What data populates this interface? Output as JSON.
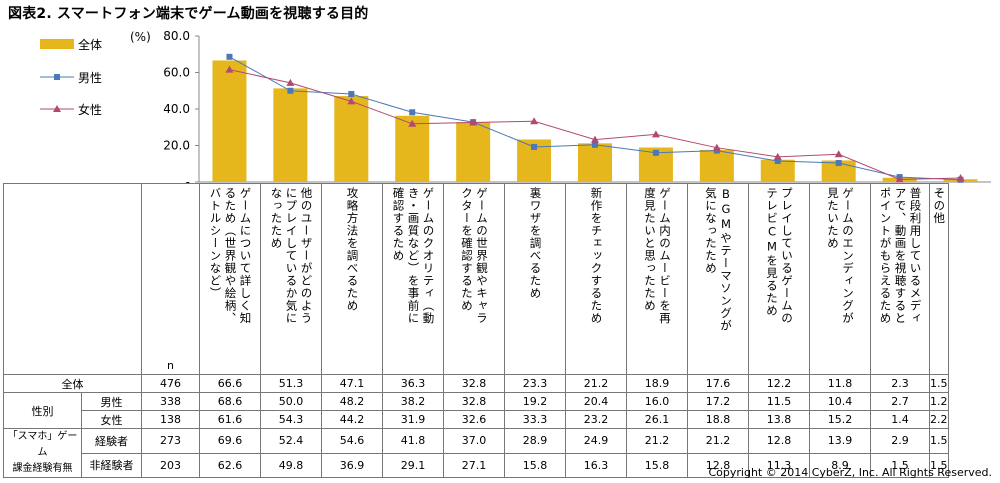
{
  "title": "図表2. スマートフォン端末でゲーム動画を視聴する目的",
  "unit_label": "(%)",
  "y_ticks": [
    "80.0",
    "60.0",
    "40.0",
    "20.0",
    "-"
  ],
  "legend": {
    "all": "全体",
    "male": "男性",
    "female": "女性"
  },
  "colors": {
    "bar": "#e5b71c",
    "male": "#4a78b8",
    "female": "#b24a6e"
  },
  "chart_data": {
    "type": "bar",
    "categories": [
      "ゲームについて詳しく知るため（世界観や絵柄、バトルシーンなど）",
      "他のユーザーがどのようにプレイしているか気になったため",
      "攻略方法を調べるため",
      "ゲームのクオリティ（動き・画質など）を事前に確認するため",
      "ゲームの世界観やキャラクターを確認するため",
      "裏ワザを調べるため",
      "新作をチェックするため",
      "ゲーム内のムービーを再度見たいと思ったため",
      "BGMやテーマソングが気になったため",
      "プレイしているゲームのテレビCMを見るため",
      "ゲームのエンディングが見たいため",
      "普段利用しているメディアで、動画を視聴するとポイントがもらえるため",
      "その他"
    ],
    "series": [
      {
        "name": "全体",
        "values": [
          66.6,
          51.3,
          47.1,
          36.3,
          32.8,
          23.3,
          21.2,
          18.9,
          17.6,
          12.2,
          11.8,
          2.3,
          1.5
        ]
      },
      {
        "name": "男性",
        "values": [
          68.6,
          50.0,
          48.2,
          38.2,
          32.8,
          19.2,
          20.4,
          16.0,
          17.2,
          11.5,
          10.4,
          2.7,
          1.2
        ]
      },
      {
        "name": "女性",
        "values": [
          61.6,
          54.3,
          44.2,
          31.9,
          32.6,
          33.3,
          23.2,
          26.1,
          18.8,
          13.8,
          15.2,
          1.4,
          2.2
        ]
      }
    ],
    "ylim": [
      0,
      80
    ],
    "ylabel": "(%)"
  },
  "table": {
    "header_n": "n",
    "category_labels": [
      "ゲームについて詳しく知\nるため（世界観や絵柄、\nバトルシーンなど）",
      "他のユーザーがどのよう\nにプレイしているか気に\nなったため",
      "攻略方法を調べるため",
      "ゲームのクオリティ（動\nき・画質など）を事前に\n確認するため",
      "ゲームの世界観やキャラ\nクターを確認するため",
      "裏ワザを調べるため",
      "新作をチェックするため",
      "ゲーム内のムービーを再\n度見たいと思ったため",
      "BGMやテーマソングが\n気になったため",
      "プレイしているゲームの\nテレビCMを見るため",
      "ゲームのエンディングが\n見たいため",
      "普段利用しているメディ\nアで、動画を視聴すると\nポイントがもらえるため",
      "その他"
    ],
    "rows": [
      {
        "group": "全体",
        "sub": "",
        "n": "476",
        "values": [
          "66.6",
          "51.3",
          "47.1",
          "36.3",
          "32.8",
          "23.3",
          "21.2",
          "18.9",
          "17.6",
          "12.2",
          "11.8",
          "2.3",
          "1.5"
        ]
      },
      {
        "group": "性別",
        "sub": "男性",
        "n": "338",
        "values": [
          "68.6",
          "50.0",
          "48.2",
          "38.2",
          "32.8",
          "19.2",
          "20.4",
          "16.0",
          "17.2",
          "11.5",
          "10.4",
          "2.7",
          "1.2"
        ]
      },
      {
        "group": "",
        "sub": "女性",
        "n": "138",
        "values": [
          "61.6",
          "54.3",
          "44.2",
          "31.9",
          "32.6",
          "33.3",
          "23.2",
          "26.1",
          "18.8",
          "13.8",
          "15.2",
          "1.4",
          "2.2"
        ]
      },
      {
        "group": "「スマホ」ゲーム",
        "sub": "経験者",
        "n": "273",
        "values": [
          "69.6",
          "52.4",
          "54.6",
          "41.8",
          "37.0",
          "28.9",
          "24.9",
          "21.2",
          "21.2",
          "12.8",
          "13.9",
          "2.9",
          "1.5"
        ]
      },
      {
        "group": "課金経験有無",
        "sub": "非経験者",
        "n": "203",
        "values": [
          "62.6",
          "49.8",
          "36.9",
          "29.1",
          "27.1",
          "15.8",
          "16.3",
          "15.8",
          "12.8",
          "11.3",
          "8.9",
          "1.5",
          "1.5"
        ]
      }
    ]
  },
  "footer": "Copyright © 2014 CyberZ, Inc.  All Rights Reserved."
}
